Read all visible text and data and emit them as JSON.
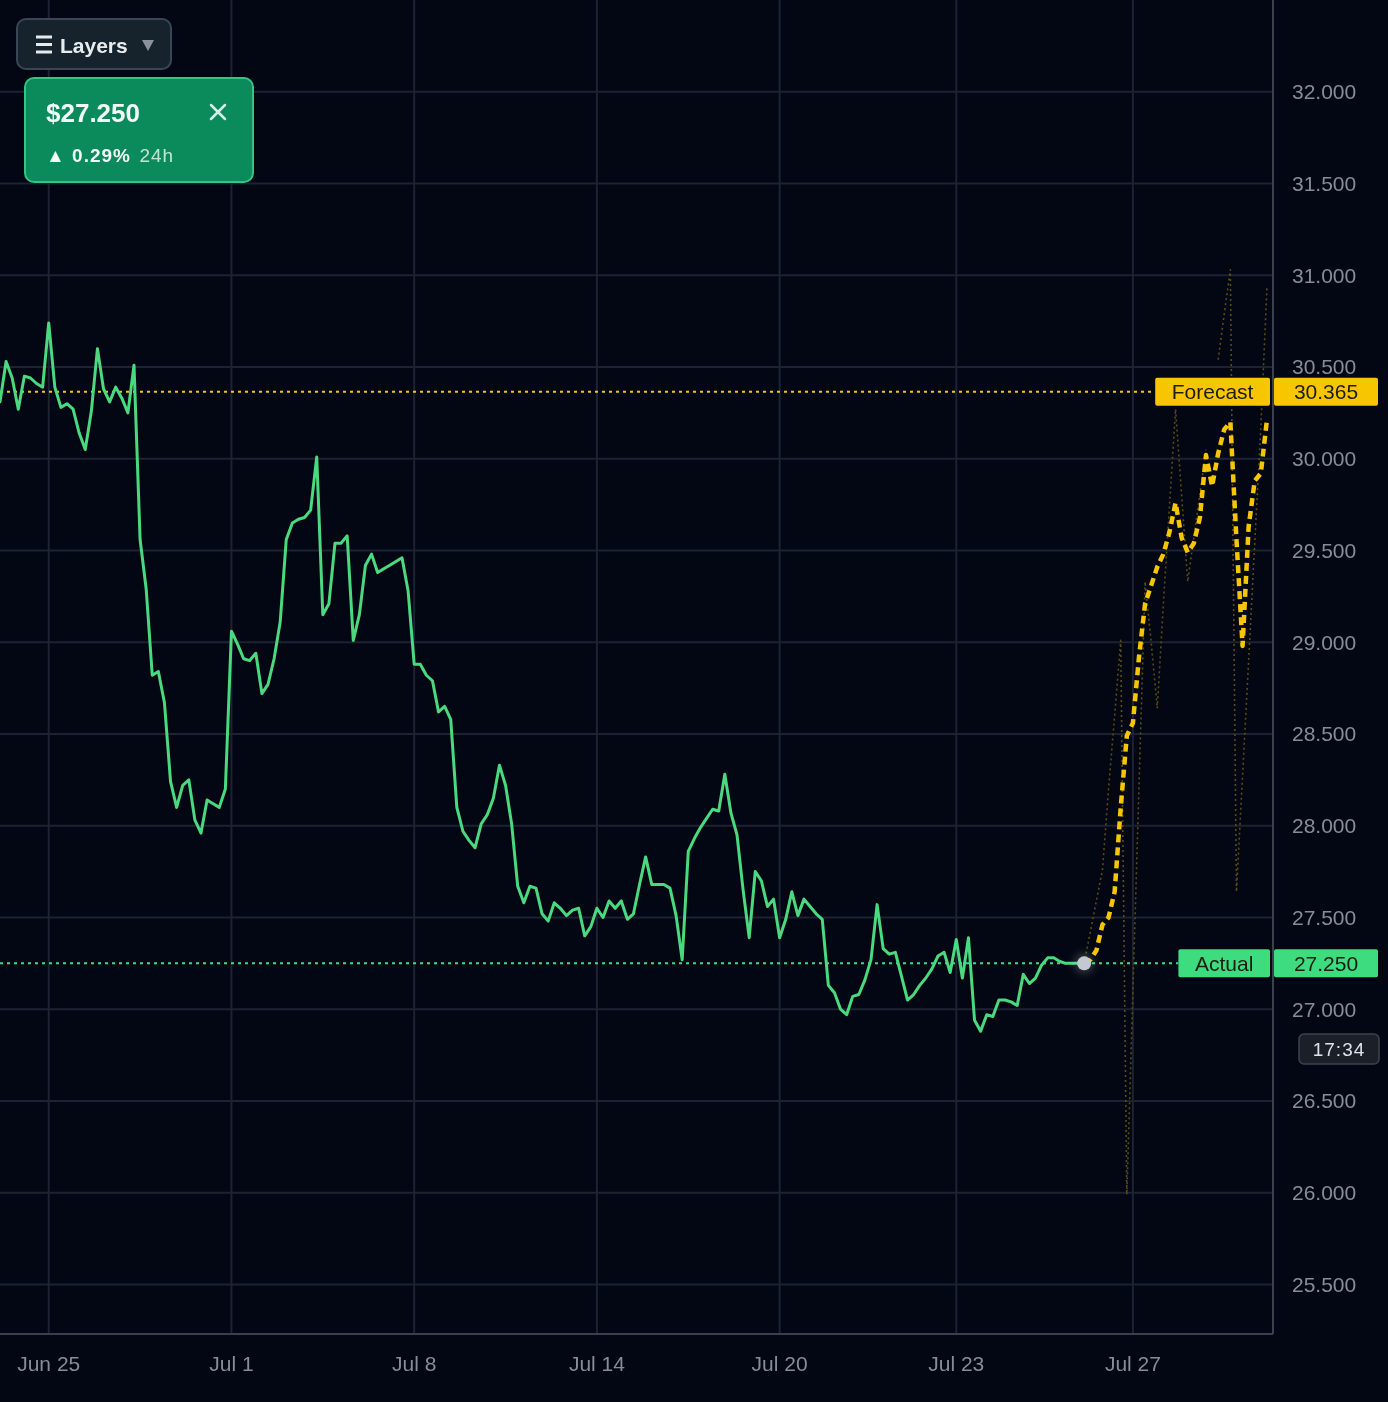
{
  "chart_data": {
    "type": "line",
    "categories": [
      null,
      null,
      null,
      null,
      null,
      null,
      null,
      null,
      "Jun 25",
      null,
      null,
      null,
      null,
      null,
      null,
      null,
      null,
      null,
      null,
      null,
      null,
      null,
      null,
      null,
      null,
      null,
      null,
      null,
      null,
      null,
      null,
      null,
      null,
      null,
      null,
      null,
      null,
      null,
      "Jul 1",
      null,
      null,
      null,
      null,
      null,
      null,
      null,
      null,
      null,
      null,
      null,
      null,
      null,
      null,
      null,
      null,
      null,
      null,
      null,
      null,
      null,
      null,
      null,
      null,
      null,
      null,
      null,
      null,
      null,
      "Jul 8",
      null,
      null,
      null,
      null,
      null,
      null,
      null,
      null,
      null,
      null,
      null,
      null,
      null,
      null,
      null,
      null,
      null,
      null,
      null,
      null,
      null,
      null,
      null,
      null,
      null,
      null,
      null,
      null,
      null,
      "Jul 14",
      null,
      null,
      null,
      null,
      null,
      null,
      null,
      null,
      null,
      null,
      null,
      null,
      null,
      null,
      null,
      null,
      null,
      null,
      null,
      null,
      null,
      null,
      null,
      null,
      null,
      null,
      null,
      null,
      null,
      "Jul 20",
      null,
      null,
      null,
      null,
      null,
      null,
      null,
      null,
      null,
      null,
      null,
      null,
      null,
      null,
      null,
      null,
      null,
      null,
      null,
      null,
      null,
      null,
      null,
      null,
      null,
      null,
      null,
      null,
      "Jul 23",
      null,
      null,
      null,
      null,
      null,
      null,
      null,
      null,
      null,
      null,
      null,
      null,
      null,
      null,
      null,
      null,
      null,
      null,
      null,
      null,
      null,
      null,
      null,
      null,
      null,
      null,
      null,
      null,
      "Jul 27",
      null,
      null,
      null,
      null,
      null,
      null,
      null,
      null,
      null,
      null,
      null,
      null,
      null,
      null,
      null,
      null,
      null,
      null,
      null,
      null,
      null,
      null,
      null
    ],
    "ylim": [
      25.23,
      32.5
    ],
    "yticks": [
      {
        "value": 25.5,
        "label": "25.500"
      },
      {
        "value": 26,
        "label": "26.000"
      },
      {
        "value": 26.5,
        "label": "26.500"
      },
      {
        "value": 27,
        "label": "27.000"
      },
      {
        "value": 27.5,
        "label": "27.500"
      },
      {
        "value": 28,
        "label": "28.000"
      },
      {
        "value": 28.5,
        "label": "28.500"
      },
      {
        "value": 29,
        "label": "29.000"
      },
      {
        "value": 29.5,
        "label": "29.500"
      },
      {
        "value": 30,
        "label": "30.000"
      },
      {
        "value": 30.5,
        "label": "30.500"
      },
      {
        "value": 31,
        "label": "31.000"
      },
      {
        "value": 31.5,
        "label": "31.500"
      },
      {
        "value": 32,
        "label": "32.000"
      }
    ],
    "grid": true,
    "series": [
      {
        "color": "#4ad97f",
        "line_style": "solid",
        "values": [
          30.31,
          30.53,
          30.44,
          30.27,
          30.45,
          30.44,
          30.41,
          30.39,
          30.74,
          30.39,
          30.28,
          30.3,
          30.27,
          30.14,
          30.05,
          30.26,
          30.6,
          30.38,
          30.31,
          30.39,
          30.33,
          30.25,
          30.51,
          29.56,
          29.29,
          28.82,
          28.84,
          28.67,
          28.24,
          28.1,
          28.22,
          28.25,
          28.03,
          27.96,
          28.14,
          28.12,
          28.1,
          28.2,
          29.06,
          28.99,
          28.91,
          28.9,
          28.94,
          28.72,
          28.77,
          28.91,
          29.11,
          29.56,
          29.65,
          29.67,
          29.68,
          29.72,
          30.01,
          29.15,
          29.21,
          29.54,
          29.54,
          29.58,
          29.01,
          29.15,
          29.42,
          29.48,
          29.38,
          29.4,
          29.42,
          29.44,
          29.46,
          29.28,
          28.88,
          28.88,
          28.82,
          28.79,
          28.62,
          28.65,
          28.58,
          28.1,
          27.97,
          27.92,
          27.88,
          28.01,
          28.06,
          28.15,
          28.33,
          28.22,
          28.01,
          27.67,
          27.58,
          27.67,
          27.66,
          27.52,
          27.48,
          27.58,
          27.55,
          27.51,
          27.54,
          27.55,
          27.4,
          27.45,
          27.55,
          27.5,
          27.59,
          27.55,
          27.59,
          27.49,
          27.52,
          27.68,
          27.83,
          27.68,
          27.68,
          27.68,
          27.66,
          27.51,
          27.27,
          27.86,
          27.93,
          27.99,
          28.04,
          28.09,
          28.08,
          28.28,
          28.07,
          27.95,
          27.65,
          27.39,
          27.75,
          27.7,
          27.56,
          27.6,
          27.39,
          27.49,
          27.64,
          27.51,
          27.6,
          27.56,
          27.52,
          27.49,
          27.13,
          27.09,
          27.0,
          26.97,
          27.07,
          27.08,
          27.16,
          27.27,
          27.57,
          27.33,
          27.3,
          27.31,
          27.18,
          27.05,
          27.08,
          27.13,
          27.17,
          27.22,
          27.29,
          27.31,
          27.2,
          27.38,
          27.17,
          27.39,
          26.94,
          26.88,
          26.97,
          26.96,
          27.05,
          27.05,
          27.04,
          27.02,
          27.19,
          27.14,
          27.17,
          27.24,
          27.28,
          27.28,
          27.26,
          27.25,
          27.25,
          27.25,
          27.25,
          null,
          null,
          null,
          null,
          null,
          null,
          null,
          null,
          null,
          null,
          null,
          null,
          null,
          null,
          null,
          null,
          null,
          null,
          null,
          null,
          null,
          null,
          null,
          null,
          null,
          null,
          null,
          null,
          null,
          null,
          null
        ]
      },
      {
        "type": "line",
        "color": "#5b4d18",
        "line_style": "dotted",
        "values": [
          null,
          null,
          null,
          null,
          null,
          null,
          null,
          null,
          null,
          null,
          null,
          null,
          null,
          null,
          null,
          null,
          null,
          null,
          null,
          null,
          null,
          null,
          null,
          null,
          null,
          null,
          null,
          null,
          null,
          null,
          null,
          null,
          null,
          null,
          null,
          null,
          null,
          null,
          null,
          null,
          null,
          null,
          null,
          null,
          null,
          null,
          null,
          null,
          null,
          null,
          null,
          null,
          null,
          null,
          null,
          null,
          null,
          null,
          null,
          null,
          null,
          null,
          null,
          null,
          null,
          null,
          null,
          null,
          null,
          null,
          null,
          null,
          null,
          null,
          null,
          null,
          null,
          null,
          null,
          null,
          null,
          null,
          null,
          null,
          null,
          null,
          null,
          null,
          null,
          null,
          null,
          null,
          null,
          null,
          null,
          null,
          null,
          null,
          null,
          null,
          null,
          null,
          null,
          null,
          null,
          null,
          null,
          null,
          null,
          null,
          null,
          null,
          null,
          null,
          null,
          null,
          null,
          null,
          null,
          null,
          null,
          null,
          null,
          null,
          null,
          null,
          null,
          null,
          null,
          null,
          null,
          null,
          null,
          null,
          null,
          null,
          null,
          null,
          null,
          null,
          null,
          null,
          null,
          null,
          null,
          null,
          null,
          null,
          null,
          null,
          null,
          null,
          null,
          null,
          null,
          null,
          null,
          null,
          null,
          null,
          null,
          null,
          null,
          null,
          null,
          null,
          null,
          null,
          null,
          null,
          null,
          null,
          null,
          null,
          null,
          null,
          null,
          null,
          27.25,
          27.42,
          27.59,
          27.76,
          28.2,
          28.6,
          29.01,
          25.99,
          27.1,
          28.22,
          29.33,
          29.0,
          28.64,
          29.21,
          29.74,
          30.27,
          29.8,
          29.33,
          29.57,
          29.81,
          30.05,
          null,
          30.54,
          30.79,
          31.03,
          27.64,
          28.27,
          28.9,
          29.54,
          30.17,
          30.93,
          null
        ]
      },
      {
        "type": "line",
        "color": "#f7c600",
        "line_style": "dashed",
        "values": [
          null,
          null,
          null,
          null,
          null,
          null,
          null,
          null,
          null,
          null,
          null,
          null,
          null,
          null,
          null,
          null,
          null,
          null,
          null,
          null,
          null,
          null,
          null,
          null,
          null,
          null,
          null,
          null,
          null,
          null,
          null,
          null,
          null,
          null,
          null,
          null,
          null,
          null,
          null,
          null,
          null,
          null,
          null,
          null,
          null,
          null,
          null,
          null,
          null,
          null,
          null,
          null,
          null,
          null,
          null,
          null,
          null,
          null,
          null,
          null,
          null,
          null,
          null,
          null,
          null,
          null,
          null,
          null,
          null,
          null,
          null,
          null,
          null,
          null,
          null,
          null,
          null,
          null,
          null,
          null,
          null,
          null,
          null,
          null,
          null,
          null,
          null,
          null,
          null,
          null,
          null,
          null,
          null,
          null,
          null,
          null,
          null,
          null,
          null,
          null,
          null,
          null,
          null,
          null,
          null,
          null,
          null,
          null,
          null,
          null,
          null,
          null,
          null,
          null,
          null,
          null,
          null,
          null,
          null,
          null,
          null,
          null,
          null,
          null,
          null,
          null,
          null,
          null,
          null,
          null,
          null,
          null,
          null,
          null,
          null,
          null,
          null,
          null,
          null,
          null,
          null,
          null,
          null,
          null,
          null,
          null,
          null,
          null,
          null,
          null,
          null,
          null,
          null,
          null,
          null,
          null,
          null,
          null,
          null,
          null,
          null,
          null,
          null,
          null,
          null,
          null,
          null,
          null,
          null,
          null,
          null,
          null,
          null,
          null,
          null,
          null,
          null,
          null,
          27.25,
          27.27,
          27.32,
          27.46,
          27.5,
          27.64,
          28.1,
          28.49,
          28.56,
          28.92,
          29.21,
          29.31,
          29.41,
          29.48,
          29.6,
          29.76,
          29.57,
          29.49,
          29.54,
          29.68,
          30.02,
          29.85,
          30.03,
          30.16,
          30.2,
          29.56,
          28.98,
          29.63,
          29.88,
          29.92,
          30.21,
          null
        ]
      },
      {
        "type": "scatter",
        "color": "#c5c8d0",
        "marker": "circle",
        "values": [
          null,
          null,
          null,
          null,
          null,
          null,
          null,
          null,
          null,
          null,
          null,
          null,
          null,
          null,
          null,
          null,
          null,
          null,
          null,
          null,
          null,
          null,
          null,
          null,
          null,
          null,
          null,
          null,
          null,
          null,
          null,
          null,
          null,
          null,
          null,
          null,
          null,
          null,
          null,
          null,
          null,
          null,
          null,
          null,
          null,
          null,
          null,
          null,
          null,
          null,
          null,
          null,
          null,
          null,
          null,
          null,
          null,
          null,
          null,
          null,
          null,
          null,
          null,
          null,
          null,
          null,
          null,
          null,
          null,
          null,
          null,
          null,
          null,
          null,
          null,
          null,
          null,
          null,
          null,
          null,
          null,
          null,
          null,
          null,
          null,
          null,
          null,
          null,
          null,
          null,
          null,
          null,
          null,
          null,
          null,
          null,
          null,
          null,
          null,
          null,
          null,
          null,
          null,
          null,
          null,
          null,
          null,
          null,
          null,
          null,
          null,
          null,
          null,
          null,
          null,
          null,
          null,
          null,
          null,
          null,
          null,
          null,
          null,
          null,
          null,
          null,
          null,
          null,
          null,
          null,
          null,
          null,
          null,
          null,
          null,
          null,
          null,
          null,
          null,
          null,
          null,
          null,
          null,
          null,
          null,
          null,
          null,
          null,
          null,
          null,
          null,
          null,
          null,
          null,
          null,
          null,
          null,
          null,
          null,
          null,
          null,
          null,
          null,
          null,
          null,
          null,
          null,
          null,
          null,
          null,
          null,
          null,
          null,
          null,
          null,
          null,
          null,
          null,
          27.25,
          null,
          null,
          null,
          null,
          null,
          null,
          null,
          null,
          null,
          null,
          null,
          null,
          null,
          null,
          null,
          null,
          null,
          null,
          null,
          null,
          null,
          null,
          null,
          null,
          null,
          null,
          null,
          null,
          null,
          null,
          null
        ]
      }
    ],
    "ref_lines": [
      {
        "axis": "y",
        "value": 30.365,
        "label": "Forecast",
        "color": "#f7c600",
        "line_style": "dotted"
      },
      {
        "axis": "y",
        "value": 27.25,
        "label": "Actual",
        "color": "#3ddc7f",
        "line_style": "dotted"
      }
    ],
    "annotations": [
      "Layers",
      "$27.250",
      "▲ 0.29%",
      "24h",
      "17:34",
      "30.365",
      "27.250"
    ]
  }
}
